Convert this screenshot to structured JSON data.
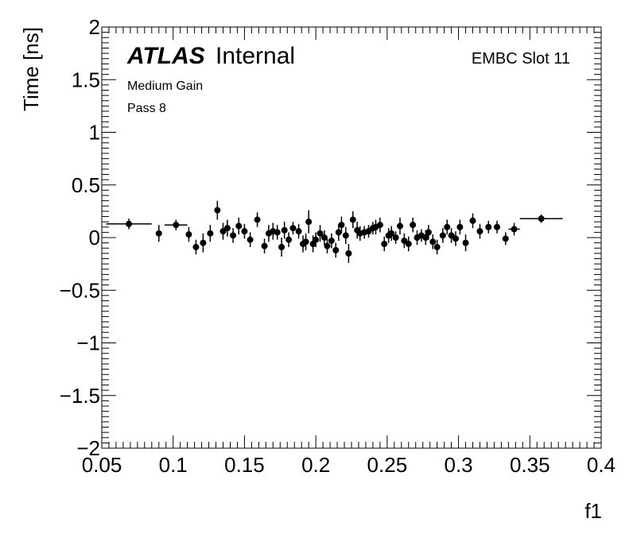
{
  "chart_data": {
    "type": "scatter",
    "xlabel": "f1",
    "ylabel": "Time [ns]",
    "xlim": [
      0.05,
      0.4
    ],
    "ylim": [
      -2,
      2
    ],
    "x_tick_labels": [
      "0.05",
      "0.1",
      "0.15",
      "0.2",
      "0.25",
      "0.3",
      "0.35",
      "0.4"
    ],
    "y_tick_labels": [
      "−2",
      "−1.5",
      "−1",
      "−0.5",
      "0",
      "0.5",
      "1",
      "1.5",
      "2"
    ],
    "x_ticks": [
      0.05,
      0.1,
      0.15,
      0.2,
      0.25,
      0.3,
      0.35,
      0.4
    ],
    "y_ticks": [
      -2,
      -1.5,
      -1,
      -0.5,
      0,
      0.5,
      1,
      1.5,
      2
    ],
    "grid": false,
    "series": [
      {
        "points": [
          {
            "x": 0.069,
            "y": 0.13,
            "xerr": 0.016,
            "yerr": 0.05
          },
          {
            "x": 0.09,
            "y": 0.04,
            "xerr": 0.0,
            "yerr": 0.08
          },
          {
            "x": 0.102,
            "y": 0.12,
            "xerr": 0.008,
            "yerr": 0.05
          },
          {
            "x": 0.111,
            "y": 0.03,
            "xerr": 0.0,
            "yerr": 0.07
          },
          {
            "x": 0.116,
            "y": -0.09,
            "xerr": 0.0,
            "yerr": 0.07
          },
          {
            "x": 0.121,
            "y": -0.05,
            "xerr": 0.0,
            "yerr": 0.09
          },
          {
            "x": 0.126,
            "y": 0.04,
            "xerr": 0.0,
            "yerr": 0.08
          },
          {
            "x": 0.131,
            "y": 0.26,
            "xerr": 0.0,
            "yerr": 0.09
          },
          {
            "x": 0.135,
            "y": 0.06,
            "xerr": 0.0,
            "yerr": 0.08
          },
          {
            "x": 0.138,
            "y": 0.09,
            "xerr": 0.0,
            "yerr": 0.08
          },
          {
            "x": 0.142,
            "y": 0.02,
            "xerr": 0.0,
            "yerr": 0.07
          },
          {
            "x": 0.146,
            "y": 0.11,
            "xerr": 0.0,
            "yerr": 0.08
          },
          {
            "x": 0.15,
            "y": 0.06,
            "xerr": 0.0,
            "yerr": 0.07
          },
          {
            "x": 0.154,
            "y": -0.02,
            "xerr": 0.0,
            "yerr": 0.07
          },
          {
            "x": 0.159,
            "y": 0.17,
            "xerr": 0.0,
            "yerr": 0.07
          },
          {
            "x": 0.164,
            "y": -0.08,
            "xerr": 0.0,
            "yerr": 0.07
          },
          {
            "x": 0.167,
            "y": 0.04,
            "xerr": 0.0,
            "yerr": 0.08
          },
          {
            "x": 0.17,
            "y": 0.06,
            "xerr": 0.0,
            "yerr": 0.08
          },
          {
            "x": 0.173,
            "y": 0.05,
            "xerr": 0.0,
            "yerr": 0.07
          },
          {
            "x": 0.176,
            "y": -0.09,
            "xerr": 0.0,
            "yerr": 0.09
          },
          {
            "x": 0.178,
            "y": 0.07,
            "xerr": 0.0,
            "yerr": 0.08
          },
          {
            "x": 0.181,
            "y": -0.02,
            "xerr": 0.0,
            "yerr": 0.07
          },
          {
            "x": 0.184,
            "y": 0.09,
            "xerr": 0.0,
            "yerr": 0.06
          },
          {
            "x": 0.188,
            "y": 0.06,
            "xerr": 0.0,
            "yerr": 0.07
          },
          {
            "x": 0.191,
            "y": -0.06,
            "xerr": 0.0,
            "yerr": 0.08
          },
          {
            "x": 0.193,
            "y": -0.04,
            "xerr": 0.0,
            "yerr": 0.08
          },
          {
            "x": 0.195,
            "y": 0.15,
            "xerr": 0.0,
            "yerr": 0.11
          },
          {
            "x": 0.198,
            "y": -0.06,
            "xerr": 0.0,
            "yerr": 0.08
          },
          {
            "x": 0.2,
            "y": -0.02,
            "xerr": 0.0,
            "yerr": 0.07
          },
          {
            "x": 0.203,
            "y": 0.04,
            "xerr": 0.0,
            "yerr": 0.08
          },
          {
            "x": 0.206,
            "y": 0.0,
            "xerr": 0.0,
            "yerr": 0.07
          },
          {
            "x": 0.208,
            "y": -0.08,
            "xerr": 0.0,
            "yerr": 0.07
          },
          {
            "x": 0.211,
            "y": -0.03,
            "xerr": 0.0,
            "yerr": 0.07
          },
          {
            "x": 0.214,
            "y": -0.12,
            "xerr": 0.0,
            "yerr": 0.07
          },
          {
            "x": 0.216,
            "y": 0.05,
            "xerr": 0.0,
            "yerr": 0.08
          },
          {
            "x": 0.218,
            "y": 0.12,
            "xerr": 0.0,
            "yerr": 0.08
          },
          {
            "x": 0.221,
            "y": 0.02,
            "xerr": 0.0,
            "yerr": 0.08
          },
          {
            "x": 0.223,
            "y": -0.15,
            "xerr": 0.0,
            "yerr": 0.09
          },
          {
            "x": 0.226,
            "y": 0.17,
            "xerr": 0.0,
            "yerr": 0.08
          },
          {
            "x": 0.229,
            "y": 0.07,
            "xerr": 0.0,
            "yerr": 0.08
          },
          {
            "x": 0.231,
            "y": 0.04,
            "xerr": 0.0,
            "yerr": 0.07
          },
          {
            "x": 0.234,
            "y": 0.05,
            "xerr": 0.0,
            "yerr": 0.06
          },
          {
            "x": 0.237,
            "y": 0.06,
            "xerr": 0.0,
            "yerr": 0.06
          },
          {
            "x": 0.24,
            "y": 0.09,
            "xerr": 0.0,
            "yerr": 0.06
          },
          {
            "x": 0.242,
            "y": 0.1,
            "xerr": 0.0,
            "yerr": 0.07
          },
          {
            "x": 0.245,
            "y": 0.12,
            "xerr": 0.0,
            "yerr": 0.07
          },
          {
            "x": 0.248,
            "y": -0.06,
            "xerr": 0.0,
            "yerr": 0.07
          },
          {
            "x": 0.251,
            "y": 0.02,
            "xerr": 0.0,
            "yerr": 0.07
          },
          {
            "x": 0.253,
            "y": 0.04,
            "xerr": 0.0,
            "yerr": 0.07
          },
          {
            "x": 0.256,
            "y": 0.0,
            "xerr": 0.0,
            "yerr": 0.06
          },
          {
            "x": 0.259,
            "y": 0.11,
            "xerr": 0.0,
            "yerr": 0.08
          },
          {
            "x": 0.262,
            "y": -0.03,
            "xerr": 0.0,
            "yerr": 0.07
          },
          {
            "x": 0.265,
            "y": -0.06,
            "xerr": 0.0,
            "yerr": 0.07
          },
          {
            "x": 0.268,
            "y": 0.12,
            "xerr": 0.0,
            "yerr": 0.07
          },
          {
            "x": 0.271,
            "y": 0.0,
            "xerr": 0.0,
            "yerr": 0.07
          },
          {
            "x": 0.274,
            "y": 0.02,
            "xerr": 0.0,
            "yerr": 0.06
          },
          {
            "x": 0.277,
            "y": 0.0,
            "xerr": 0.0,
            "yerr": 0.07
          },
          {
            "x": 0.279,
            "y": 0.05,
            "xerr": 0.0,
            "yerr": 0.07
          },
          {
            "x": 0.282,
            "y": -0.04,
            "xerr": 0.0,
            "yerr": 0.07
          },
          {
            "x": 0.285,
            "y": -0.09,
            "xerr": 0.0,
            "yerr": 0.07
          },
          {
            "x": 0.289,
            "y": 0.02,
            "xerr": 0.0,
            "yerr": 0.07
          },
          {
            "x": 0.292,
            "y": 0.1,
            "xerr": 0.0,
            "yerr": 0.07
          },
          {
            "x": 0.295,
            "y": 0.02,
            "xerr": 0.0,
            "yerr": 0.07
          },
          {
            "x": 0.298,
            "y": -0.01,
            "xerr": 0.0,
            "yerr": 0.07
          },
          {
            "x": 0.301,
            "y": 0.1,
            "xerr": 0.0,
            "yerr": 0.07
          },
          {
            "x": 0.305,
            "y": -0.05,
            "xerr": 0.0,
            "yerr": 0.08
          },
          {
            "x": 0.31,
            "y": 0.16,
            "xerr": 0.0,
            "yerr": 0.07
          },
          {
            "x": 0.315,
            "y": 0.06,
            "xerr": 0.0,
            "yerr": 0.07
          },
          {
            "x": 0.321,
            "y": 0.1,
            "xerr": 0.0,
            "yerr": 0.06
          },
          {
            "x": 0.327,
            "y": 0.1,
            "xerr": 0.0,
            "yerr": 0.06
          },
          {
            "x": 0.333,
            "y": -0.01,
            "xerr": 0.0,
            "yerr": 0.06
          },
          {
            "x": 0.339,
            "y": 0.08,
            "xerr": 0.004,
            "yerr": 0.06
          },
          {
            "x": 0.358,
            "y": 0.18,
            "xerr": 0.015,
            "yerr": 0.04
          }
        ]
      }
    ],
    "annotations": {
      "atlas": "ATLAS",
      "internal": "Internal",
      "gain": "Medium Gain",
      "pass": "Pass 8",
      "slot": "EMBC Slot 11"
    }
  }
}
